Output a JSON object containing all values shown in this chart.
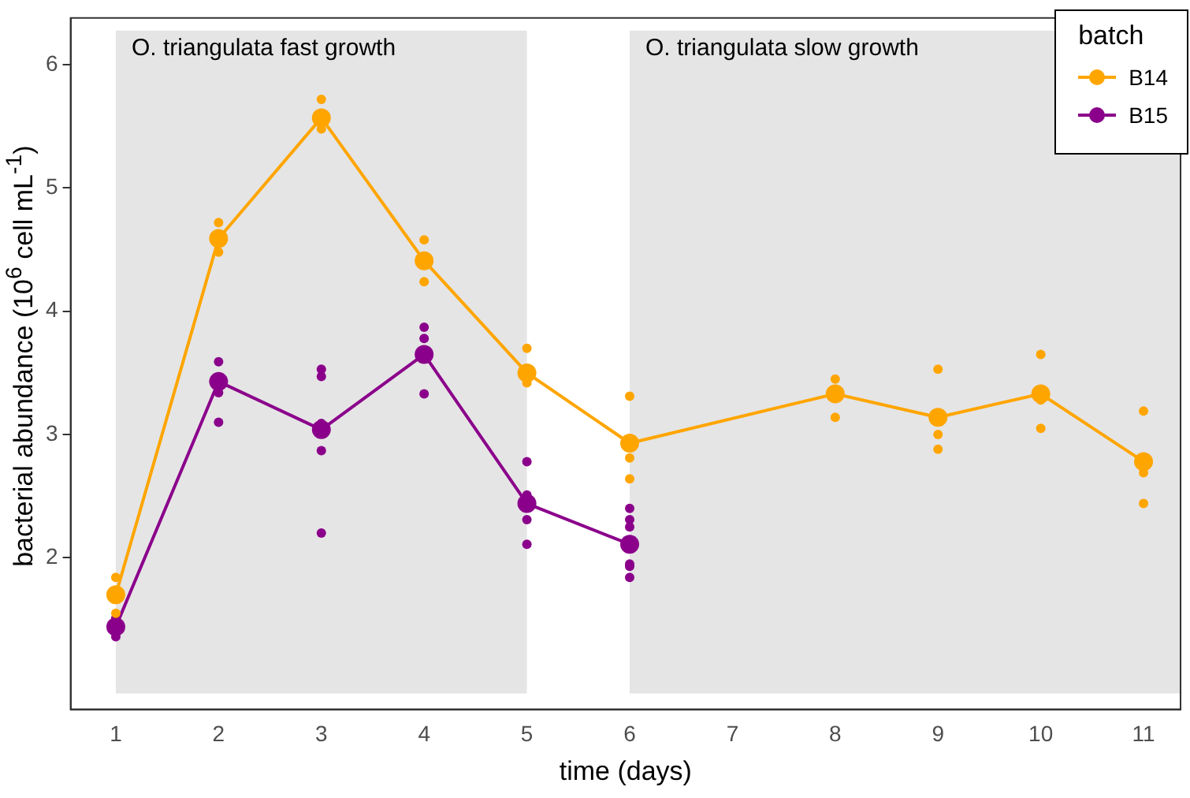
{
  "chart_data": {
    "type": "line",
    "xlabel": "time (days)",
    "ylabel": "bacterial abundance (10$^{6}$ cell mL$^{-1}$)",
    "legend_title": "batch",
    "legend": "top right",
    "grid": false,
    "marker": "circle",
    "line_style": "solid",
    "xlim": [
      0.56,
      11.36
    ],
    "xticks": [
      1,
      2,
      3,
      4,
      5,
      6,
      7,
      8,
      9,
      10,
      11
    ],
    "ylim": [
      0.77,
      6.38
    ],
    "yticks": [
      2,
      3,
      4,
      5,
      6
    ],
    "bands": [
      {
        "axis": "x",
        "from": 1,
        "to": 5,
        "label": "O. triangulata fast growth",
        "color": "#e5e5e5"
      },
      {
        "axis": "x",
        "from": 6,
        "to": 11.36,
        "label": "O. triangulata slow growth",
        "color": "#e5e5e5"
      }
    ],
    "series": [
      {
        "name": "B14",
        "color": "#ffa500",
        "x": [
          1,
          2,
          3,
          4,
          5,
          6,
          8,
          9,
          10,
          11
        ],
        "values": [
          1.7,
          4.59,
          5.57,
          4.41,
          3.5,
          2.93,
          3.33,
          3.14,
          3.33,
          2.78
        ]
      },
      {
        "name": "B15",
        "color": "#8b008b",
        "x": [
          1,
          2,
          3,
          4,
          5,
          6
        ],
        "values": [
          1.44,
          3.43,
          3.04,
          3.65,
          2.44,
          2.11
        ]
      },
      {
        "type": "scatter",
        "color": "#ffa500",
        "x": [
          1,
          1,
          2,
          2,
          3,
          3,
          4,
          4,
          5,
          5,
          6,
          6,
          6,
          8,
          8,
          9,
          9,
          9,
          10,
          10,
          10,
          11,
          11,
          11
        ],
        "values": [
          1.84,
          1.55,
          4.72,
          4.48,
          5.72,
          5.48,
          4.58,
          4.24,
          3.7,
          3.42,
          3.31,
          2.81,
          2.64,
          3.45,
          3.14,
          3.53,
          3.0,
          2.88,
          3.65,
          3.28,
          3.05,
          3.19,
          2.69,
          2.44
        ]
      },
      {
        "type": "scatter",
        "color": "#8b008b",
        "x": [
          1,
          1,
          2,
          2,
          2,
          3,
          3,
          3,
          3,
          3,
          4,
          4,
          4,
          5,
          5,
          5,
          5,
          6,
          6,
          6,
          6,
          6,
          6
        ],
        "values": [
          1.51,
          1.36,
          3.59,
          3.34,
          3.1,
          3.53,
          3.47,
          3.09,
          2.87,
          2.2,
          3.87,
          3.78,
          3.33,
          2.78,
          2.51,
          2.31,
          2.11,
          2.4,
          2.31,
          2.25,
          1.95,
          1.93,
          1.84
        ]
      }
    ]
  }
}
